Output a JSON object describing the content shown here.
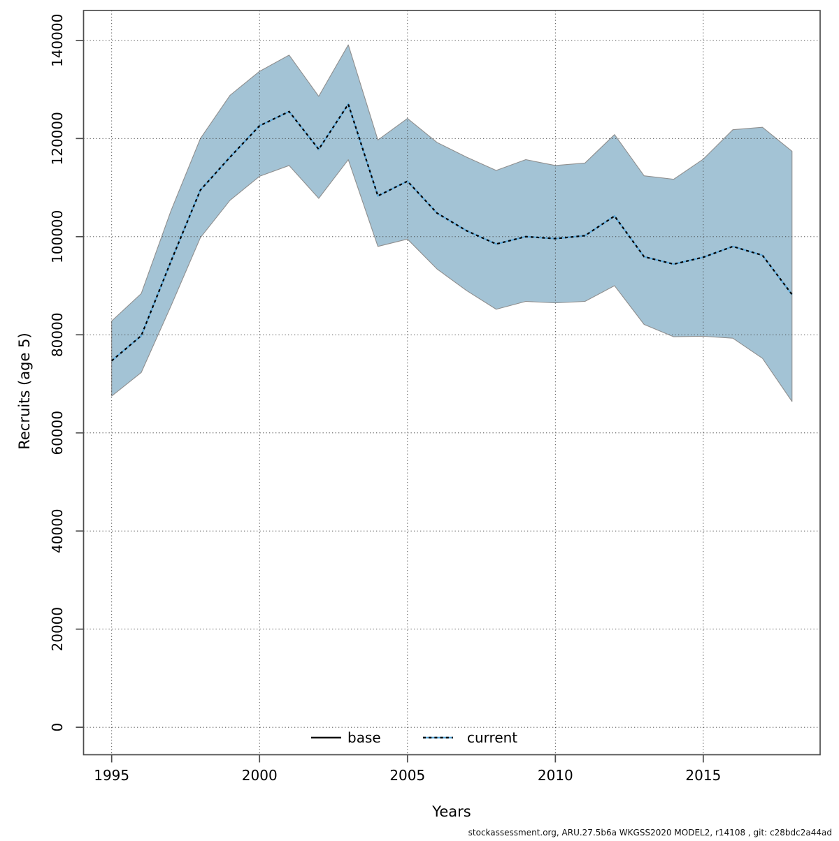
{
  "figure": {
    "background": "#ffffff",
    "footer": "stockassessment.org, ARU.27.5b6a  WKGSS2020  MODEL2, r14108 , git: c28bdc2a44ad"
  },
  "chart_data": {
    "type": "line",
    "title": "",
    "xlabel": "Years",
    "ylabel": "Recruits (age 5)",
    "grid": true,
    "legend_position": "bottom-center-inside",
    "xlim": [
      1994.05,
      2018.95
    ],
    "ylim": [
      -5600,
      146100
    ],
    "x_ticks": [
      1995,
      2000,
      2005,
      2010,
      2015
    ],
    "y_ticks": [
      0,
      20000,
      40000,
      60000,
      80000,
      100000,
      120000,
      140000
    ],
    "x": [
      1995,
      1996,
      1997,
      1998,
      1999,
      2000,
      2001,
      2002,
      2003,
      2004,
      2005,
      2006,
      2007,
      2008,
      2009,
      2010,
      2011,
      2012,
      2013,
      2014,
      2015,
      2016,
      2017,
      2018
    ],
    "series": [
      {
        "name": "current",
        "line_style": "dotted",
        "line_color_blue": "#5fabdc",
        "dash_color": "#000000",
        "values": [
          74700,
          79800,
          94900,
          109500,
          116200,
          122600,
          125500,
          117800,
          127000,
          108300,
          111300,
          104800,
          101200,
          98500,
          100000,
          99600,
          100200,
          104200,
          95900,
          94400,
          95800,
          98000,
          96200,
          88200
        ],
        "band_high": [
          82800,
          88400,
          105200,
          120000,
          128800,
          133700,
          137000,
          128600,
          139100,
          119700,
          124100,
          119200,
          116200,
          113500,
          115700,
          114500,
          115000,
          120800,
          112400,
          111700,
          115800,
          121800,
          122300,
          117400
        ],
        "band_low": [
          67500,
          72300,
          85800,
          99800,
          107400,
          112300,
          114500,
          107800,
          115700,
          98000,
          99500,
          93400,
          89000,
          85200,
          86800,
          86500,
          86800,
          90000,
          82100,
          79600,
          79700,
          79300,
          75200,
          66400
        ]
      }
    ],
    "legend": [
      {
        "label": "base",
        "style": "solid",
        "color": "#000000"
      },
      {
        "label": "current",
        "style": "dotted",
        "color": "#5fabdc"
      }
    ],
    "colors": {
      "band_fill": "#a3c3d5",
      "band_edge": "#8f8f8f",
      "grid": "#3f3f3f",
      "frame": "#4d4d4d",
      "text": "#000000"
    }
  }
}
